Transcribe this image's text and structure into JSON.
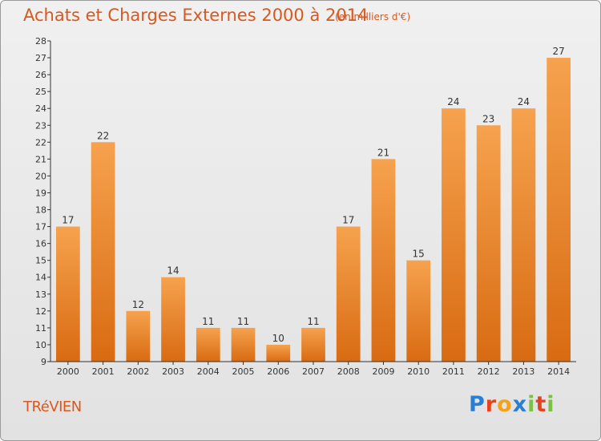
{
  "title": "Achats et Charges Externes 2000 à 2014",
  "subtitle": "(en milliers d'€)",
  "commune": "TRéVIEN",
  "logo": {
    "text": "Proxiti",
    "letters": [
      "P",
      "r",
      "o",
      "x",
      "i",
      "t",
      "i"
    ],
    "colors": [
      "#2a7fd4",
      "#e8421c",
      "#f5a21b",
      "#2a7fd4",
      "#7cc142",
      "#e8421c",
      "#7cc142"
    ]
  },
  "colors": {
    "title": "#d9581e",
    "bar_top": "#f6a24e",
    "bar_bottom": "#d86b12",
    "axis": "#333333"
  },
  "chart_data": {
    "type": "bar",
    "categories": [
      "2000",
      "2001",
      "2002",
      "2003",
      "2004",
      "2005",
      "2006",
      "2007",
      "2008",
      "2009",
      "2010",
      "2011",
      "2012",
      "2013",
      "2014"
    ],
    "values": [
      17,
      22,
      12,
      14,
      11,
      11,
      10,
      11,
      17,
      21,
      15,
      24,
      23,
      24,
      27
    ],
    "yticks": [
      9,
      10,
      11,
      12,
      13,
      14,
      15,
      16,
      17,
      18,
      19,
      20,
      21,
      22,
      23,
      24,
      25,
      26,
      27,
      28
    ],
    "ylim": [
      9,
      28
    ],
    "grid": false
  }
}
